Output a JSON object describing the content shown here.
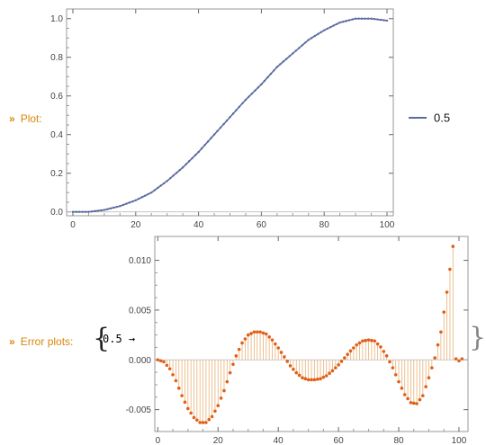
{
  "labels": {
    "plot_prefix": "»",
    "plot_label": "Plot:",
    "error_prefix": "»",
    "error_label": "Error plots:",
    "error_key": "0.5 →",
    "brace_open": "{",
    "brace_close": "}"
  },
  "colors": {
    "plot_line": "#5b6aa0",
    "plot_points": "#5b6aa0",
    "error_points": "#e0601a",
    "error_stems": "#e8b074",
    "label": "#d9860a",
    "frame": "#999999"
  },
  "chart_data": [
    {
      "type": "line",
      "title": "",
      "xlabel": "",
      "ylabel": "",
      "xlim": [
        -2,
        102
      ],
      "ylim": [
        -0.02,
        1.05
      ],
      "xticks": [
        0,
        20,
        40,
        60,
        80,
        100
      ],
      "yticks": [
        0.0,
        0.2,
        0.4,
        0.6,
        0.8,
        1.0
      ],
      "ytick_labels": [
        "0.0",
        "0.2",
        "0.4",
        "0.6",
        "0.8",
        "1.0"
      ],
      "grid": false,
      "legend_position": "right",
      "series": [
        {
          "name": "0.5",
          "x": [
            0,
            5,
            10,
            15,
            20,
            25,
            30,
            35,
            40,
            45,
            50,
            55,
            60,
            65,
            70,
            75,
            80,
            85,
            90,
            95,
            100
          ],
          "y": [
            0.0,
            0.0,
            0.01,
            0.03,
            0.06,
            0.1,
            0.16,
            0.23,
            0.31,
            0.4,
            0.49,
            0.58,
            0.66,
            0.75,
            0.82,
            0.89,
            0.94,
            0.98,
            1.0,
            1.0,
            0.99
          ]
        }
      ]
    },
    {
      "type": "scatter",
      "title": "",
      "xlabel": "",
      "ylabel": "",
      "xlim": [
        -1,
        103
      ],
      "ylim": [
        -0.0072,
        0.0124
      ],
      "xticks": [
        0,
        20,
        40,
        60,
        80,
        100
      ],
      "yticks": [
        -0.005,
        0.0,
        0.005,
        0.01
      ],
      "ytick_labels": [
        "-0.005",
        "0.000",
        "0.005",
        "0.010"
      ],
      "grid": false,
      "stems": true,
      "series": [
        {
          "x": [
            0,
            2,
            4,
            6,
            8,
            10,
            12,
            14,
            16,
            18,
            20,
            22,
            24,
            26,
            28,
            30,
            32,
            34,
            36,
            38,
            40,
            42,
            44,
            46,
            48,
            50,
            52,
            54,
            56,
            58,
            60,
            62,
            64,
            66,
            68,
            70,
            72,
            74,
            76,
            78,
            80,
            82,
            84,
            86,
            88,
            90,
            92,
            94,
            96,
            98,
            99,
            100,
            101
          ],
          "y": [
            0.0,
            -0.0002,
            -0.0009,
            -0.0021,
            -0.0036,
            -0.0049,
            -0.0058,
            -0.0063,
            -0.0063,
            -0.0057,
            -0.0046,
            -0.0031,
            -0.0013,
            0.0004,
            0.0017,
            0.0025,
            0.0028,
            0.0028,
            0.0026,
            0.002,
            0.0012,
            0.0003,
            -0.0006,
            -0.0013,
            -0.0018,
            -0.002,
            -0.002,
            -0.0019,
            -0.0016,
            -0.0011,
            -0.0005,
            0.0002,
            0.0009,
            0.0015,
            0.0019,
            0.002,
            0.0019,
            0.0013,
            0.0004,
            -0.0008,
            -0.0022,
            -0.0035,
            -0.0043,
            -0.0044,
            -0.0036,
            -0.0018,
            0.0002,
            0.0028,
            0.0068,
            0.0114,
            0.0001,
            -0.0001,
            0.0001
          ]
        }
      ]
    }
  ]
}
